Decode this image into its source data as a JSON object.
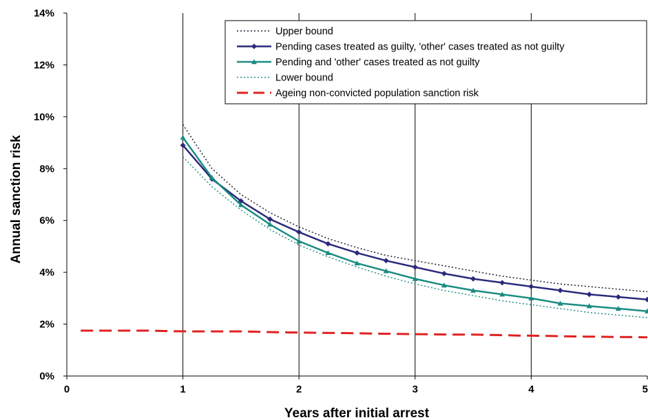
{
  "chart_data": {
    "type": "line",
    "title": "",
    "xlabel": "Years after initial arrest",
    "ylabel": "Annual sanction risk",
    "xlim": [
      0,
      5
    ],
    "ylim": [
      0,
      14
    ],
    "x_ticks": [
      "0",
      "1",
      "2",
      "3",
      "4",
      "5"
    ],
    "y_ticks": [
      "0%",
      "2%",
      "4%",
      "6%",
      "8%",
      "10%",
      "12%",
      "14%"
    ],
    "grid": "vertical",
    "legend_position": "top-right",
    "x": [
      1,
      1.25,
      1.5,
      1.75,
      2,
      2.25,
      2.5,
      2.75,
      3,
      3.25,
      3.5,
      3.75,
      4,
      4.25,
      4.5,
      4.75,
      5
    ],
    "series": [
      {
        "name": "Upper bound",
        "color": "#1a1a2e",
        "style": "dotted",
        "values": [
          9.7,
          8.0,
          7.0,
          6.3,
          5.75,
          5.3,
          4.95,
          4.65,
          4.45,
          4.25,
          4.05,
          3.85,
          3.7,
          3.55,
          3.45,
          3.35,
          3.25
        ]
      },
      {
        "name": "Pending cases treated as guilty, 'other' cases treated as not guilty",
        "color": "#2a2a7a",
        "style": "solid",
        "marker": "diamond",
        "values": [
          8.9,
          7.6,
          6.75,
          6.05,
          5.55,
          5.1,
          4.75,
          4.45,
          4.2,
          3.95,
          3.75,
          3.6,
          3.45,
          3.3,
          3.15,
          3.05,
          2.95
        ]
      },
      {
        "name": "Pending and 'other' cases treated as not guilty",
        "color": "#1a8c82",
        "style": "solid",
        "marker": "triangle",
        "values": [
          9.2,
          7.65,
          6.6,
          5.85,
          5.2,
          4.75,
          4.35,
          4.05,
          3.75,
          3.5,
          3.3,
          3.15,
          3.0,
          2.8,
          2.7,
          2.6,
          2.5
        ]
      },
      {
        "name": "Lower bound",
        "color": "#1a8c82",
        "style": "dotted",
        "values": [
          8.45,
          7.3,
          6.4,
          5.65,
          5.05,
          4.6,
          4.2,
          3.85,
          3.55,
          3.3,
          3.1,
          2.9,
          2.75,
          2.6,
          2.45,
          2.35,
          2.25
        ]
      },
      {
        "name": "Ageing non-convicted population sanction risk",
        "color": "#e02020",
        "style": "dashed",
        "x": [
          0.12,
          0.3,
          0.5,
          0.7,
          0.9,
          1.1,
          1.3,
          1.5,
          1.7,
          1.9,
          2.1,
          2.3,
          2.5,
          2.7,
          2.9,
          3.1,
          3.3,
          3.5,
          3.7,
          3.9,
          4.1,
          4.3,
          4.5,
          4.7,
          4.9,
          5.0
        ],
        "values": [
          1.75,
          1.75,
          1.75,
          1.75,
          1.73,
          1.72,
          1.72,
          1.72,
          1.7,
          1.68,
          1.67,
          1.66,
          1.65,
          1.63,
          1.62,
          1.61,
          1.6,
          1.6,
          1.58,
          1.56,
          1.55,
          1.53,
          1.52,
          1.51,
          1.5,
          1.49
        ]
      }
    ]
  }
}
